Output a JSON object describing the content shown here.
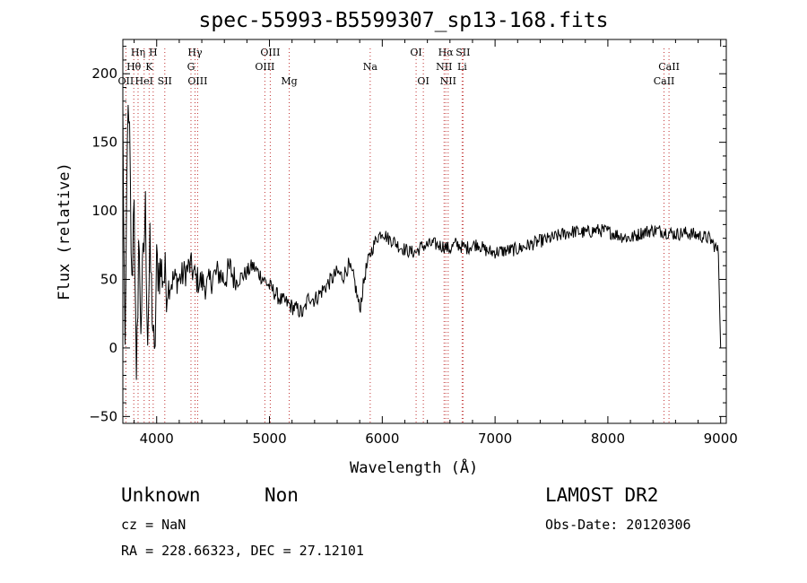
{
  "chart_data": {
    "type": "line",
    "title": "spec-55993-B5599307_sp13-168.fits",
    "xlabel": "Wavelength (Å)",
    "ylabel": "Flux (relative)",
    "xlim": [
      3700,
      9050
    ],
    "ylim": [
      -55,
      225
    ],
    "xticks": [
      4000,
      5000,
      6000,
      7000,
      8000,
      9000
    ],
    "yticks": [
      -50,
      0,
      50,
      100,
      150,
      200
    ],
    "grid": false,
    "series": [
      {
        "x": [
          3700,
          3720,
          3740,
          3760,
          3780,
          3800,
          3820,
          3840,
          3860,
          3880,
          3900,
          3920,
          3940,
          3960,
          3980,
          4000,
          4050,
          4100,
          4150,
          4200,
          4250,
          4300,
          4350,
          4400,
          4450,
          4500,
          4550,
          4600,
          4650,
          4700,
          4750,
          4800,
          4850,
          4900,
          4950,
          5000,
          5050,
          5100,
          5150,
          5200,
          5250,
          5300,
          5350,
          5400,
          5450,
          5500,
          5550,
          5600,
          5650,
          5700,
          5750,
          5800,
          5850,
          5900,
          5950,
          6000,
          6050,
          6100,
          6150,
          6200,
          6250,
          6300,
          6350,
          6400,
          6450,
          6500,
          6550,
          6600,
          6650,
          6700,
          6750,
          6800,
          6850,
          6900,
          6950,
          7000,
          7100,
          7200,
          7300,
          7400,
          7500,
          7600,
          7700,
          7800,
          7900,
          8000,
          8100,
          8200,
          8300,
          8400,
          8500,
          8600,
          8700,
          8800,
          8900,
          8950,
          8980,
          9000
        ],
        "y": [
          170,
          -20,
          165,
          150,
          40,
          120,
          -40,
          80,
          20,
          60,
          100,
          10,
          70,
          30,
          -15,
          60,
          55,
          45,
          50,
          50,
          55,
          60,
          50,
          48,
          45,
          52,
          55,
          50,
          58,
          48,
          52,
          55,
          60,
          55,
          50,
          45,
          40,
          35,
          33,
          30,
          28,
          25,
          38,
          35,
          40,
          45,
          50,
          55,
          52,
          60,
          50,
          28,
          55,
          70,
          80,
          85,
          80,
          78,
          74,
          72,
          70,
          70,
          74,
          75,
          76,
          75,
          74,
          72,
          76,
          74,
          73,
          75,
          76,
          72,
          70,
          70,
          71,
          72,
          75,
          78,
          80,
          83,
          85,
          84,
          86,
          85,
          82,
          80,
          84,
          86,
          85,
          83,
          84,
          82,
          80,
          74,
          70,
          0
        ]
      }
    ],
    "lines": [
      {
        "label": "Hη",
        "x": 3835,
        "row": 1
      },
      {
        "label": "H",
        "x": 3969,
        "row": 1
      },
      {
        "label": "Hθ",
        "x": 3797,
        "row": 2
      },
      {
        "label": "K",
        "x": 3933,
        "row": 2
      },
      {
        "label": "OII",
        "x": 3727,
        "row": 3
      },
      {
        "label": "HeI",
        "x": 3889,
        "row": 3
      },
      {
        "label": "SII",
        "x": 4072,
        "row": 3
      },
      {
        "label": "Hγ",
        "x": 4340,
        "row": 1
      },
      {
        "label": "G",
        "x": 4304,
        "row": 2
      },
      {
        "label": "OIII",
        "x": 4363,
        "row": 3
      },
      {
        "label": "OIII",
        "x": 5007,
        "row": 1
      },
      {
        "label": "OIII",
        "x": 4959,
        "row": 2
      },
      {
        "label": "Mg",
        "x": 5175,
        "row": 3
      },
      {
        "label": "Na",
        "x": 5893,
        "row": 2
      },
      {
        "label": "OI",
        "x": 6300,
        "row": 1
      },
      {
        "label": "OI",
        "x": 6364,
        "row": 3
      },
      {
        "label": "Hα",
        "x": 6563,
        "row": 1
      },
      {
        "label": "SII",
        "x": 6716,
        "row": 1
      },
      {
        "label": "NII",
        "x": 6548,
        "row": 2
      },
      {
        "label": "Li",
        "x": 6708,
        "row": 2
      },
      {
        "label": "NII",
        "x": 6584,
        "row": 3
      },
      {
        "label": "CaII",
        "x": 8542,
        "row": 2
      },
      {
        "label": "CaII",
        "x": 8498,
        "row": 3
      }
    ]
  },
  "info": {
    "object_class": "Unknown",
    "object_subclass": "Non",
    "survey": "LAMOST DR2",
    "cz": "cz = NaN",
    "obs_date": "Obs-Date: 20120306",
    "radec": "RA = 228.66323, DEC =  27.12101"
  }
}
